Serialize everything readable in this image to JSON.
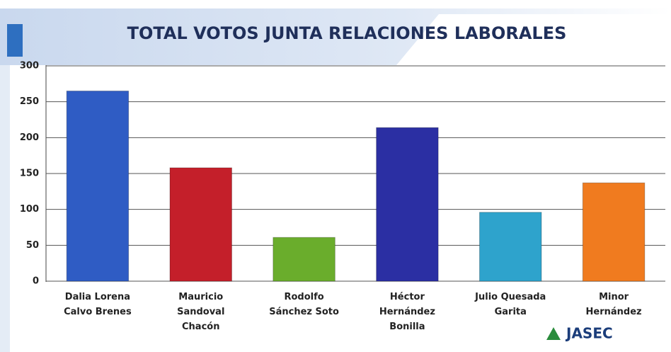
{
  "chart_data": {
    "type": "bar",
    "title": "TOTAL VOTOS JUNTA RELACIONES LABORALES",
    "categories": [
      "Dalia Lorena Calvo Brenes",
      "Mauricio Sandoval Chacón",
      "Rodolfo Sánchez Soto",
      "Héctor Hernández Bonilla",
      "Julio Quesada Garita",
      "Minor Hernández"
    ],
    "values": [
      265,
      158,
      61,
      214,
      96,
      137
    ],
    "colors": [
      "#2f5cc4",
      "#c41f2a",
      "#6aad2c",
      "#2b2fa3",
      "#2ea3cc",
      "#f07b1f"
    ],
    "ylim": [
      0,
      300
    ],
    "yticks": [
      0,
      50,
      100,
      150,
      200,
      250,
      300
    ],
    "grid": true,
    "logo": "JASEC"
  }
}
